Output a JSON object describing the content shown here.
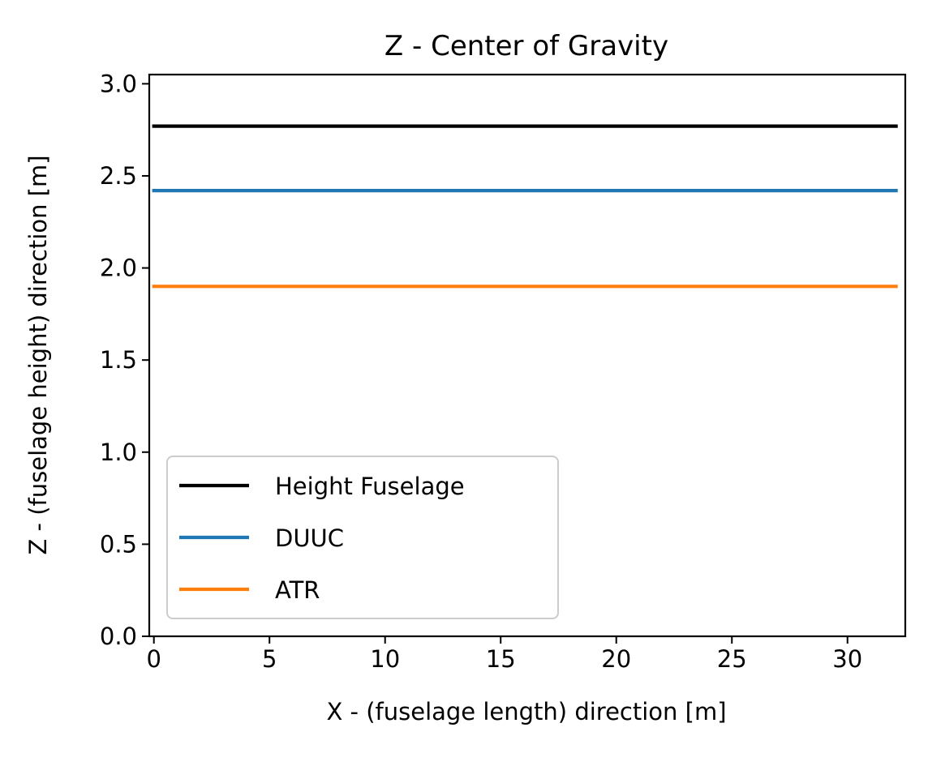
{
  "chart_data": {
    "type": "line",
    "title": "Z - Center of Gravity",
    "xlabel": "X - (fuselage length) direction [m]",
    "ylabel": "Z - (fuselage height) direction [m]",
    "xlim": [
      -0.2,
      32.5
    ],
    "ylim": [
      0.0,
      3.05
    ],
    "xticks": [
      0,
      5,
      10,
      15,
      20,
      25,
      30
    ],
    "yticks": [
      0.0,
      0.5,
      1.0,
      1.5,
      2.0,
      2.5,
      3.0
    ],
    "xtick_labels": [
      "0",
      "5",
      "10",
      "15",
      "20",
      "25",
      "30"
    ],
    "ytick_labels": [
      "0.0",
      "0.5",
      "1.0",
      "1.5",
      "2.0",
      "2.5",
      "3.0"
    ],
    "grid": false,
    "legend_position": "lower-left",
    "series": [
      {
        "name": "Height Fuselage",
        "color": "#000000",
        "x": [
          0,
          32.1
        ],
        "y": [
          2.77,
          2.77
        ]
      },
      {
        "name": "DUUC",
        "color": "#1f77b4",
        "x": [
          0,
          32.1
        ],
        "y": [
          2.42,
          2.42
        ]
      },
      {
        "name": "ATR",
        "color": "#ff7f0e",
        "x": [
          0,
          32.1
        ],
        "y": [
          1.9,
          1.9
        ]
      }
    ]
  }
}
